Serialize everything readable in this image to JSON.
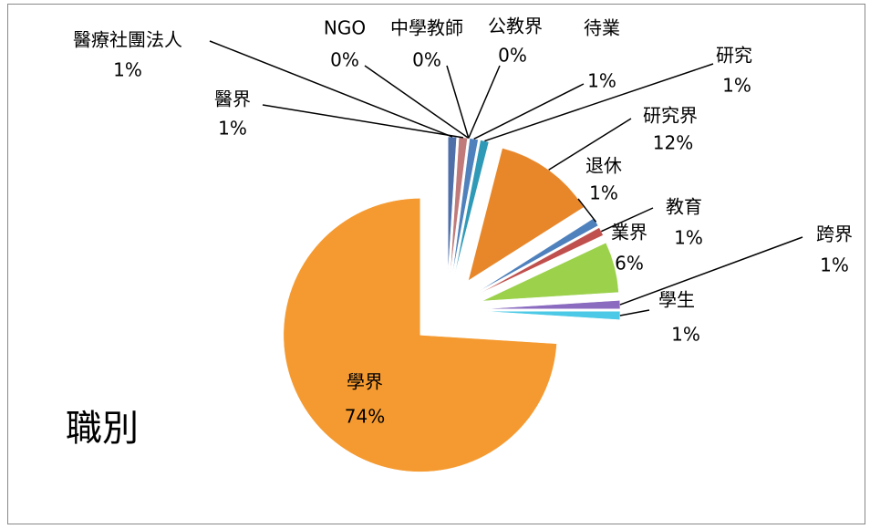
{
  "chart_data": {
    "type": "pie",
    "title": "職別",
    "categories": [
      "醫療社團法人",
      "醫界",
      "NGO",
      "中學教師",
      "公教界",
      "待業",
      "研究",
      "研究界",
      "退休",
      "教育",
      "業界",
      "跨界",
      "學生",
      "學界"
    ],
    "values": [
      1,
      1,
      0,
      0,
      0,
      1,
      1,
      12,
      1,
      1,
      6,
      1,
      1,
      74
    ],
    "value_labels": [
      "1%",
      "1%",
      "0%",
      "0%",
      "0%",
      "1%",
      "1%",
      "12%",
      "1%",
      "1%",
      "6%",
      "1%",
      "1%",
      "74%"
    ],
    "colors": [
      "#4f6fa8",
      "#c07a7a",
      "#6b8e3a",
      "#7a3a8a",
      "#3a8ab0",
      "#4f81bd",
      "#2e9ab8",
      "#e8872a",
      "#4f81bd",
      "#c0504d",
      "#9bd14b",
      "#8a6bbf",
      "#4bc9e6",
      "#f59a30"
    ]
  }
}
